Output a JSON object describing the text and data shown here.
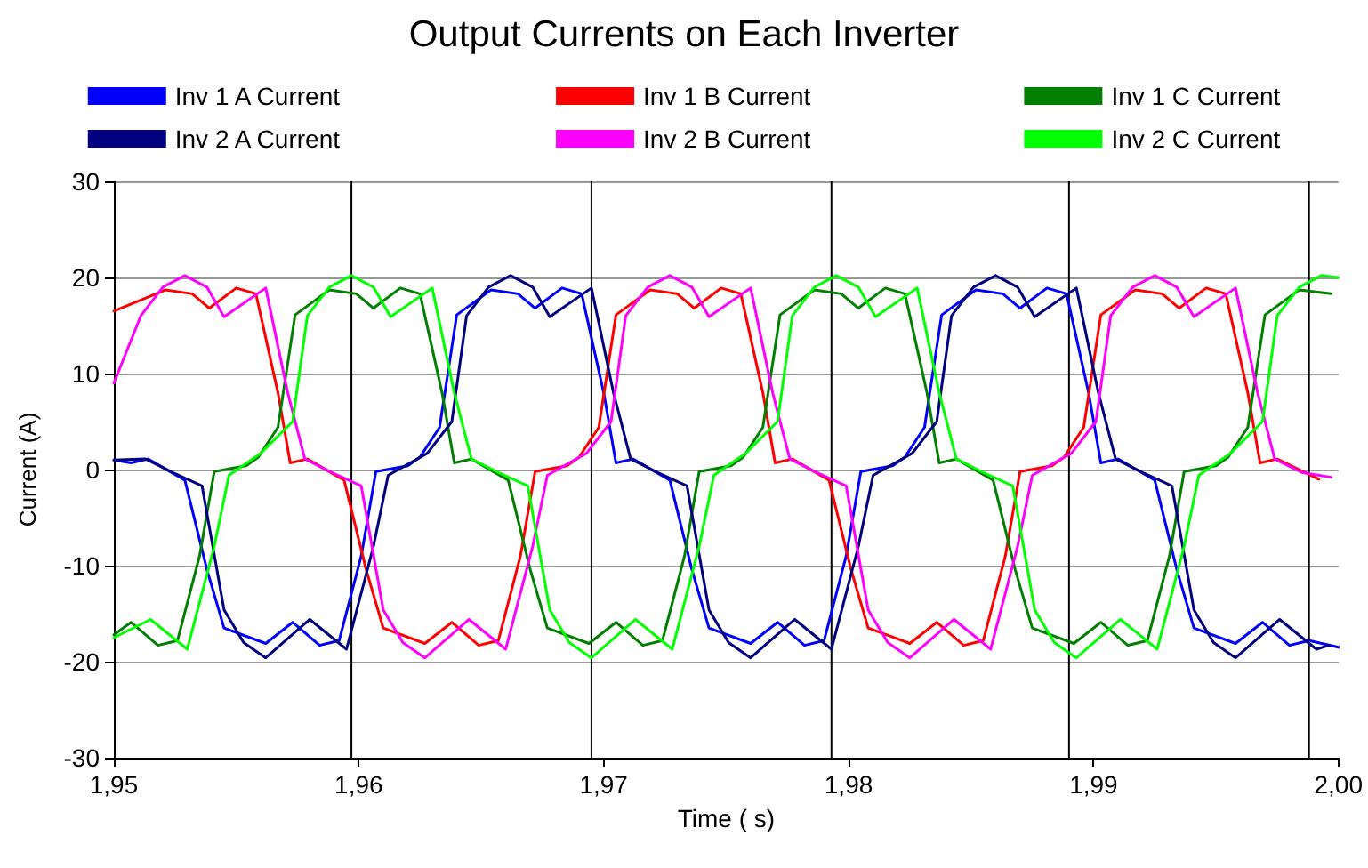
{
  "chart_data": {
    "type": "line",
    "title": "Output Currents on Each Inverter",
    "xlabel": "Time ( s)",
    "ylabel": "Current (A)",
    "xlim": [
      1.95,
      2.0
    ],
    "xticks": [
      {
        "value": 1.95,
        "label": "1,95"
      },
      {
        "value": 1.96,
        "label": "1,96"
      },
      {
        "value": 1.97,
        "label": "1,97"
      },
      {
        "value": 1.98,
        "label": "1,98"
      },
      {
        "value": 1.99,
        "label": "1,99"
      },
      {
        "value": 2.0,
        "label": "2,00"
      }
    ],
    "ylim": [
      -30,
      30
    ],
    "yticks": [
      -30,
      -20,
      -10,
      0,
      10,
      20,
      30
    ],
    "grid": "y",
    "legend": "top",
    "marker": "none",
    "line_style": "solid",
    "ref_lines": [
      {
        "axis": "x",
        "value": 1.9597,
        "color": "#000000"
      },
      {
        "axis": "x",
        "value": 1.9695,
        "color": "#000000"
      },
      {
        "axis": "x",
        "value": 1.9793,
        "color": "#000000"
      },
      {
        "axis": "x",
        "value": 1.989,
        "color": "#000000"
      },
      {
        "axis": "x",
        "value": 1.9988,
        "color": "#000000"
      }
    ],
    "series": [
      {
        "name": "Inv 1 A Current",
        "color": "#0000ff",
        "x": [
          1.95,
          1.9507,
          1.9514,
          1.9529,
          1.9538,
          1.9545,
          1.9562,
          1.9573,
          1.9584,
          1.9592,
          1.9601,
          1.9607,
          1.962,
          1.9625,
          1.9633,
          1.964,
          1.9654,
          1.9665,
          1.9672,
          1.9683,
          1.9691,
          1.97,
          1.9705,
          1.9712,
          1.9727,
          1.9736,
          1.9743,
          1.976,
          1.9771,
          1.9782,
          1.979,
          1.9799,
          1.9805,
          1.9818,
          1.9823,
          1.9831,
          1.9838,
          1.9852,
          1.9863,
          1.987,
          1.9881,
          1.9889,
          1.9898,
          1.9903,
          1.991,
          1.9925,
          1.9934,
          1.9941,
          1.9958,
          1.9969,
          1.998,
          1.9988,
          2.0
        ],
        "values": [
          1,
          0.7,
          1.1,
          -1.1,
          -10.4,
          -16.5,
          -18.1,
          -15.9,
          -18.3,
          -17.8,
          -9,
          -0.2,
          0.4,
          1.3,
          4.4,
          16.1,
          18.7,
          18.3,
          16.8,
          18.9,
          18.3,
          8,
          0.7,
          1.1,
          -1.1,
          -10.4,
          -16.5,
          -18.1,
          -15.9,
          -18.3,
          -17.8,
          -9,
          -0.2,
          0.4,
          1.3,
          4.4,
          16.1,
          18.7,
          18.3,
          16.8,
          18.9,
          18.3,
          8,
          0.7,
          1.1,
          -1.1,
          -10.4,
          -16.5,
          -18.1,
          -15.9,
          -18.3,
          -17.8,
          -18.5
        ]
      },
      {
        "name": "Inv 1 B Current",
        "color": "#ff0000",
        "x": [
          1.95,
          1.9521,
          1.9532,
          1.9539,
          1.955,
          1.9558,
          1.9567,
          1.9572,
          1.9579,
          1.9594,
          1.9603,
          1.961,
          1.9627,
          1.9638,
          1.9649,
          1.9657,
          1.9666,
          1.9672,
          1.9685,
          1.969,
          1.9698,
          1.9705,
          1.9719,
          1.973,
          1.9737,
          1.9748,
          1.9756,
          1.9765,
          1.977,
          1.9777,
          1.9792,
          1.9801,
          1.9808,
          1.9825,
          1.9836,
          1.9847,
          1.9855,
          1.9864,
          1.987,
          1.9883,
          1.9888,
          1.9896,
          1.9903,
          1.9917,
          1.9928,
          1.9935,
          1.9946,
          1.9954,
          1.9963,
          1.9968,
          1.9975,
          1.9992
        ],
        "values": [
          16.5,
          18.7,
          18.3,
          16.8,
          18.9,
          18.3,
          8,
          0.7,
          1.1,
          -1.1,
          -10.4,
          -16.5,
          -18.1,
          -15.9,
          -18.3,
          -17.8,
          -9,
          -0.2,
          0.4,
          1.3,
          4.4,
          16.1,
          18.7,
          18.3,
          16.8,
          18.9,
          18.3,
          8,
          0.7,
          1.1,
          -1.1,
          -10.4,
          -16.5,
          -18.1,
          -15.9,
          -18.3,
          -17.8,
          -9,
          -0.2,
          0.4,
          1.3,
          4.4,
          16.1,
          18.7,
          18.3,
          16.8,
          18.9,
          18.3,
          8,
          0.7,
          1.1,
          -1
        ]
      },
      {
        "name": "Inv 1 C Current",
        "color": "#007f00",
        "x": [
          1.95,
          1.9507,
          1.9518,
          1.9526,
          1.9535,
          1.9541,
          1.9554,
          1.9559,
          1.9567,
          1.9574,
          1.9588,
          1.9599,
          1.9606,
          1.9617,
          1.9625,
          1.9634,
          1.9639,
          1.9646,
          1.9661,
          1.967,
          1.9677,
          1.9694,
          1.9705,
          1.9716,
          1.9724,
          1.9733,
          1.9739,
          1.9752,
          1.9757,
          1.9765,
          1.9772,
          1.9786,
          1.9797,
          1.9804,
          1.9815,
          1.9823,
          1.9832,
          1.9837,
          1.9844,
          1.9859,
          1.9868,
          1.9875,
          1.9892,
          1.9903,
          1.9914,
          1.9922,
          1.9931,
          1.9937,
          1.995,
          1.9955,
          1.9963,
          1.997,
          1.9984,
          1.9997
        ],
        "values": [
          -17.2,
          -15.9,
          -18.3,
          -17.8,
          -9,
          -0.2,
          0.4,
          1.3,
          4.4,
          16.1,
          18.7,
          18.3,
          16.8,
          18.9,
          18.3,
          8,
          0.7,
          1.1,
          -1.1,
          -10.4,
          -16.5,
          -18.1,
          -15.9,
          -18.3,
          -17.8,
          -9,
          -0.2,
          0.4,
          1.3,
          4.4,
          16.1,
          18.7,
          18.3,
          16.8,
          18.9,
          18.3,
          8,
          0.7,
          1.1,
          -1.1,
          -10.4,
          -16.5,
          -18.1,
          -15.9,
          -18.3,
          -17.8,
          -9,
          -0.2,
          0.4,
          1.3,
          4.4,
          16.1,
          18.7,
          18.3
        ]
      },
      {
        "name": "Inv 2 A Current",
        "color": "#000080",
        "x": [
          1.95,
          1.9513,
          1.9524,
          1.9536,
          1.9545,
          1.9553,
          1.9562,
          1.958,
          1.9595,
          1.9606,
          1.9612,
          1.9628,
          1.9638,
          1.9644,
          1.9653,
          1.9662,
          1.9671,
          1.9678,
          1.9695,
          1.9704,
          1.9711,
          1.9722,
          1.9734,
          1.9743,
          1.9751,
          1.976,
          1.9778,
          1.9793,
          1.9804,
          1.981,
          1.9826,
          1.9836,
          1.9842,
          1.9851,
          1.986,
          1.9869,
          1.9876,
          1.9893,
          1.9902,
          1.9909,
          1.992,
          1.9932,
          1.9941,
          1.9949,
          1.9958,
          1.9976,
          1.9991,
          1.9996
        ],
        "values": [
          1,
          1.1,
          -0.3,
          -1.7,
          -14.6,
          -18,
          -19.6,
          -15.6,
          -18.7,
          -8,
          -0.6,
          1.7,
          5,
          16,
          19,
          20.2,
          19,
          15.9,
          18.9,
          8,
          1.1,
          -0.3,
          -1.7,
          -14.6,
          -18,
          -19.6,
          -15.6,
          -18.7,
          -8,
          -0.6,
          1.7,
          5,
          16,
          19,
          20.2,
          19,
          15.9,
          18.9,
          8,
          1.1,
          -0.3,
          -1.7,
          -14.6,
          -18,
          -19.6,
          -15.6,
          -18.7,
          -18.3
        ]
      },
      {
        "name": "Inv 2 B Current",
        "color": "#ff00ff",
        "x": [
          1.95,
          1.9511,
          1.952,
          1.9529,
          1.9538,
          1.9545,
          1.9562,
          1.9571,
          1.9578,
          1.9589,
          1.9601,
          1.961,
          1.9618,
          1.9627,
          1.9645,
          1.966,
          1.9671,
          1.9677,
          1.9693,
          1.9703,
          1.9709,
          1.9718,
          1.9727,
          1.9736,
          1.9743,
          1.976,
          1.9769,
          1.9776,
          1.9787,
          1.9799,
          1.9808,
          1.9816,
          1.9825,
          1.9843,
          1.9858,
          1.9869,
          1.9875,
          1.9891,
          1.9901,
          1.9907,
          1.9916,
          1.9925,
          1.9934,
          1.9941,
          1.9958,
          1.9967,
          1.9974,
          1.9985,
          1.9997
        ],
        "values": [
          9,
          16,
          19,
          20.2,
          19,
          15.9,
          18.9,
          8,
          1.1,
          -0.3,
          -1.7,
          -14.6,
          -18,
          -19.6,
          -15.6,
          -18.7,
          -8,
          -0.6,
          1.7,
          5,
          16,
          19,
          20.2,
          19,
          15.9,
          18.9,
          8,
          1.1,
          -0.3,
          -1.7,
          -14.6,
          -18,
          -19.6,
          -15.6,
          -18.7,
          -8,
          -0.6,
          1.7,
          5,
          16,
          19,
          20.2,
          19,
          15.9,
          18.9,
          8,
          1.1,
          -0.3,
          -0.8
        ]
      },
      {
        "name": "Inv 2 C Current",
        "color": "#00ff00",
        "x": [
          1.95,
          1.9515,
          1.953,
          1.9541,
          1.9547,
          1.956,
          1.9573,
          1.9579,
          1.9588,
          1.9597,
          1.9606,
          1.9613,
          1.963,
          1.9639,
          1.9646,
          1.9657,
          1.9669,
          1.9678,
          1.9686,
          1.9695,
          1.9713,
          1.9728,
          1.9739,
          1.9745,
          1.9758,
          1.9771,
          1.9777,
          1.9786,
          1.9795,
          1.9804,
          1.9811,
          1.9828,
          1.9837,
          1.9844,
          1.9855,
          1.9867,
          1.9876,
          1.9884,
          1.9893,
          1.9911,
          1.9926,
          1.9937,
          1.9943,
          1.9956,
          1.9969,
          1.9975,
          1.9984,
          1.9993,
          2.0
        ],
        "values": [
          -17.5,
          -15.6,
          -18.7,
          -8,
          -0.6,
          1.7,
          5,
          16,
          19,
          20.2,
          19,
          15.9,
          18.9,
          8,
          1.1,
          -0.3,
          -1.7,
          -14.6,
          -18,
          -19.6,
          -15.6,
          -18.7,
          -8,
          -0.6,
          1.7,
          5,
          16,
          19,
          20.2,
          19,
          15.9,
          18.9,
          8,
          1.1,
          -0.3,
          -1.7,
          -14.6,
          -18,
          -19.6,
          -15.6,
          -18.7,
          -8,
          -0.6,
          1.7,
          5,
          16,
          19,
          20.2,
          20
        ]
      }
    ]
  }
}
